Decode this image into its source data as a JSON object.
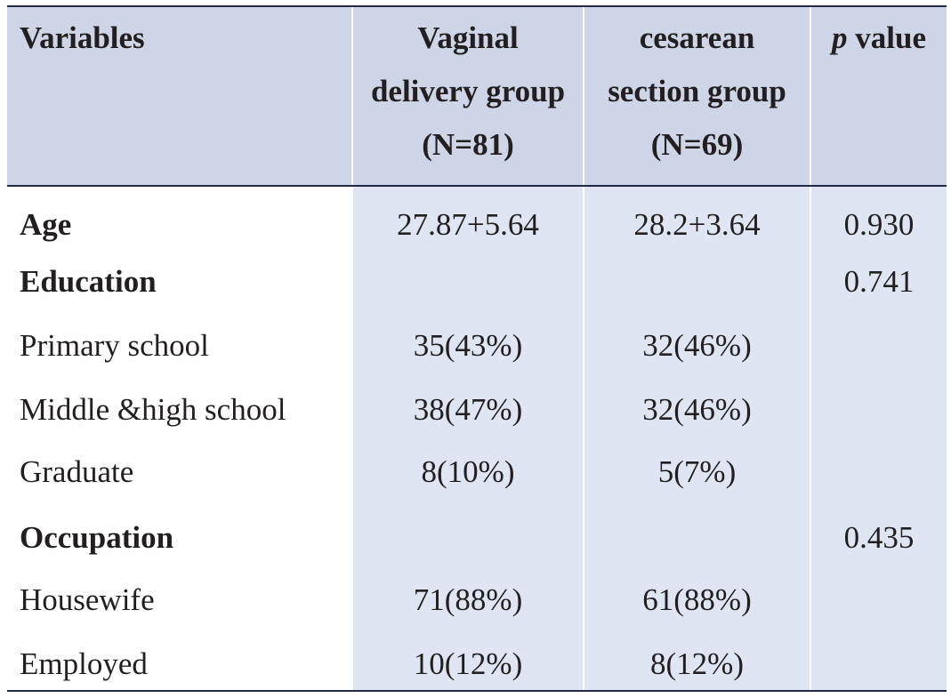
{
  "header": {
    "variables": "Variables",
    "vaginal": [
      "Vaginal",
      "delivery group",
      "(N=81)"
    ],
    "cesarean": [
      "cesarean",
      "section group",
      "(N=69)"
    ],
    "p_italic": "p",
    "p_rest": " value"
  },
  "rows": [
    {
      "label": "Age",
      "bold": true,
      "vaginal": "27.87+5.64",
      "cesarean": "28.2+3.64",
      "p": "0.930"
    },
    {
      "label": "Education",
      "bold": true,
      "vaginal": "",
      "cesarean": "",
      "p": "0.741"
    },
    {
      "label": "Primary school",
      "bold": false,
      "vaginal": "35(43%)",
      "cesarean": "32(46%)",
      "p": ""
    },
    {
      "label": "Middle &high school",
      "bold": false,
      "vaginal": "38(47%)",
      "cesarean": "32(46%)",
      "p": ""
    },
    {
      "label": "Graduate",
      "bold": false,
      "vaginal": "8(10%)",
      "cesarean": "5(7%)",
      "p": ""
    },
    {
      "label": "Occupation",
      "bold": true,
      "vaginal": "",
      "cesarean": "",
      "p": "0.435"
    },
    {
      "label": "Housewife",
      "bold": false,
      "vaginal": "71(88%)",
      "cesarean": "61(88%)",
      "p": ""
    },
    {
      "label": "Employed",
      "bold": false,
      "vaginal": "10(12%)",
      "cesarean": "8(12%)",
      "p": ""
    }
  ]
}
